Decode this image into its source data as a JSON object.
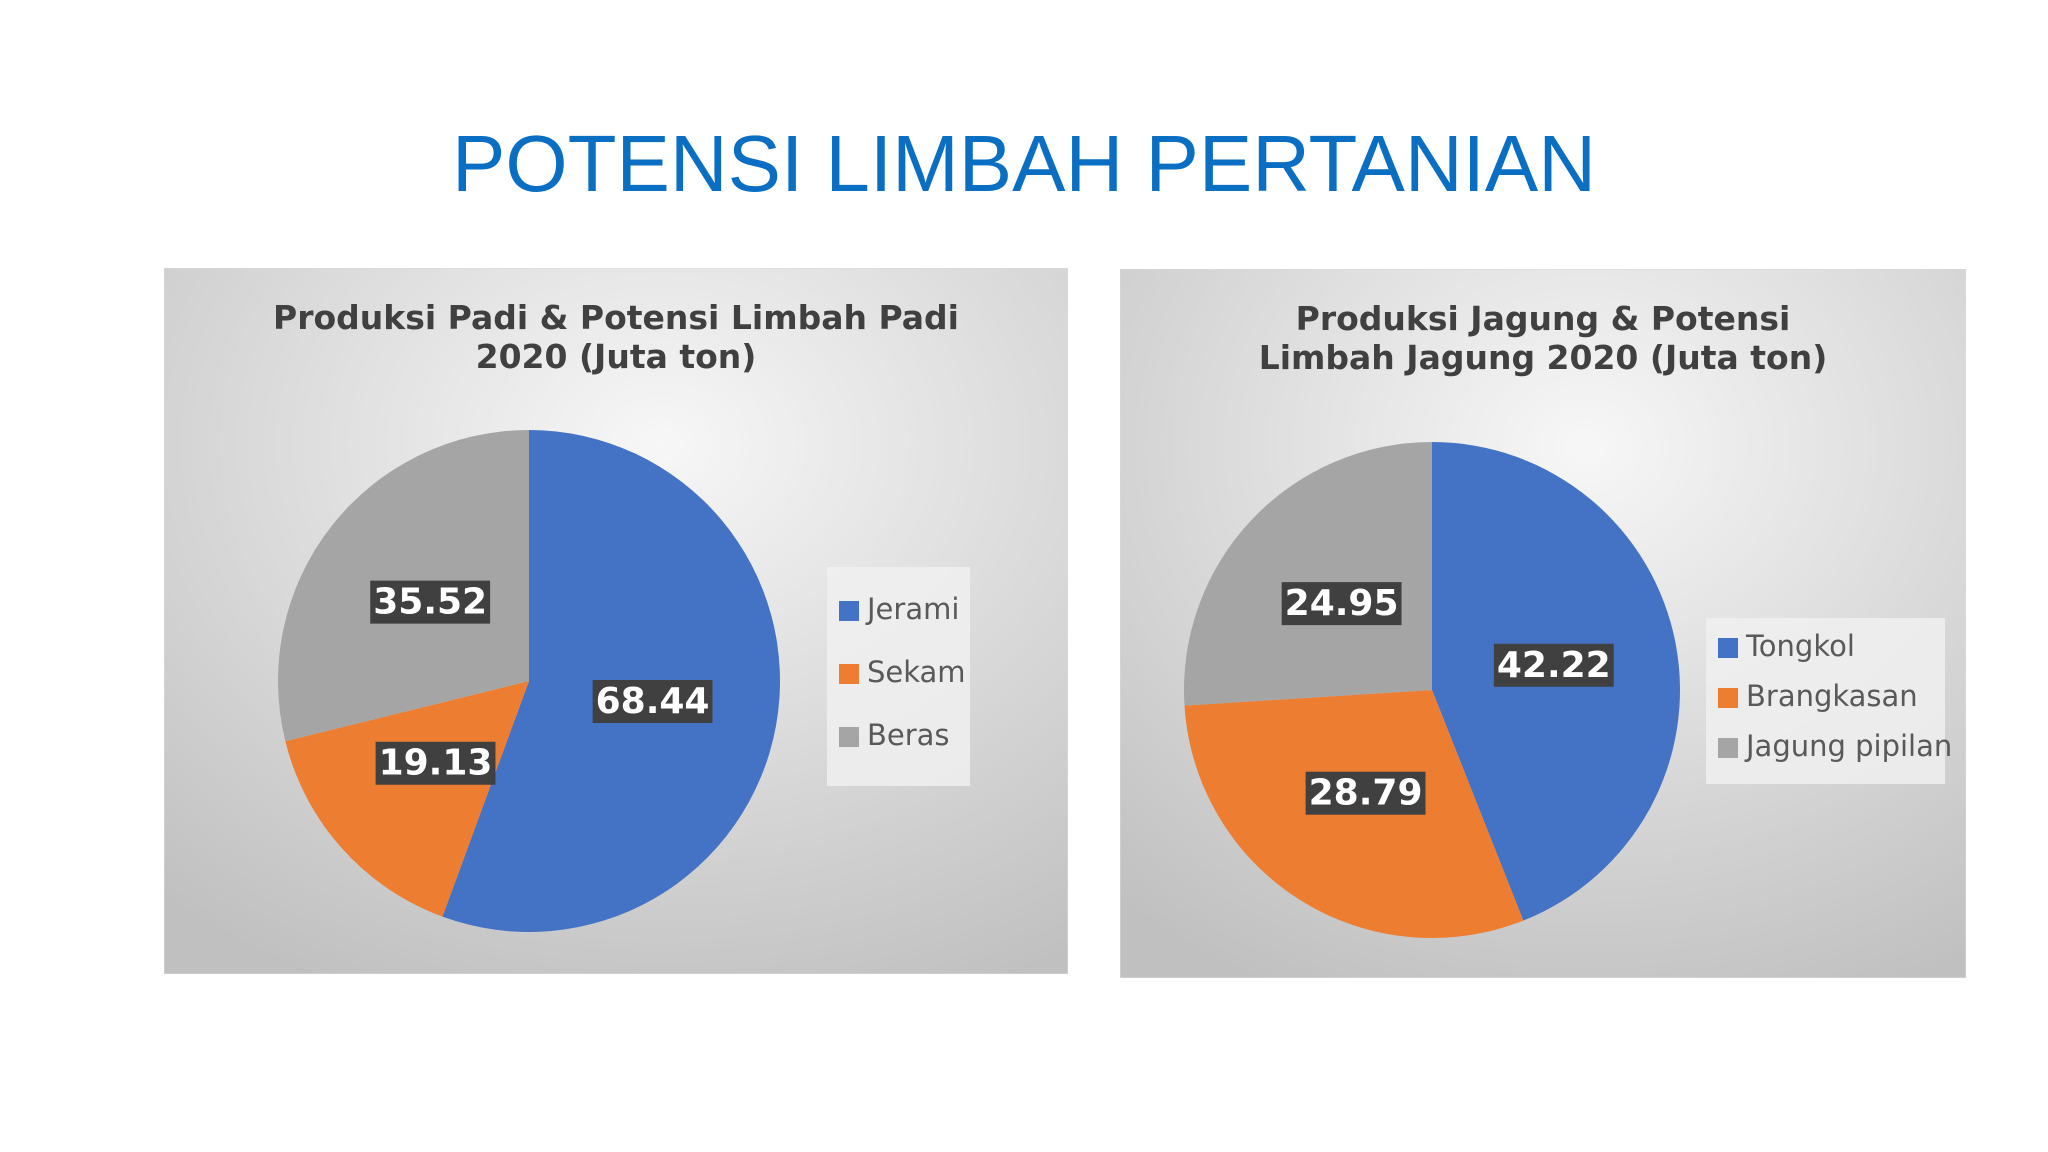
{
  "page_title": "POTENSI LIMBAH PERTANIAN",
  "chart_data": [
    {
      "type": "pie",
      "title": "Produksi Padi & Potensi Limbah Padi 2020 (Juta ton)",
      "categories": [
        "Jerami",
        "Sekam",
        "Beras"
      ],
      "values": [
        68.44,
        19.13,
        35.52
      ],
      "colors": [
        "#4472c4",
        "#ed7d31",
        "#a5a5a5"
      ],
      "legend": "right"
    },
    {
      "type": "pie",
      "title": "Produksi Jagung & Potensi Limbah Jagung 2020 (Juta ton)",
      "categories": [
        "Tongkol",
        "Brangkasan",
        "Jagung pipilan"
      ],
      "values": [
        42.22,
        28.79,
        24.95
      ],
      "colors": [
        "#4472c4",
        "#ed7d31",
        "#a5a5a5"
      ],
      "legend": "right"
    }
  ]
}
